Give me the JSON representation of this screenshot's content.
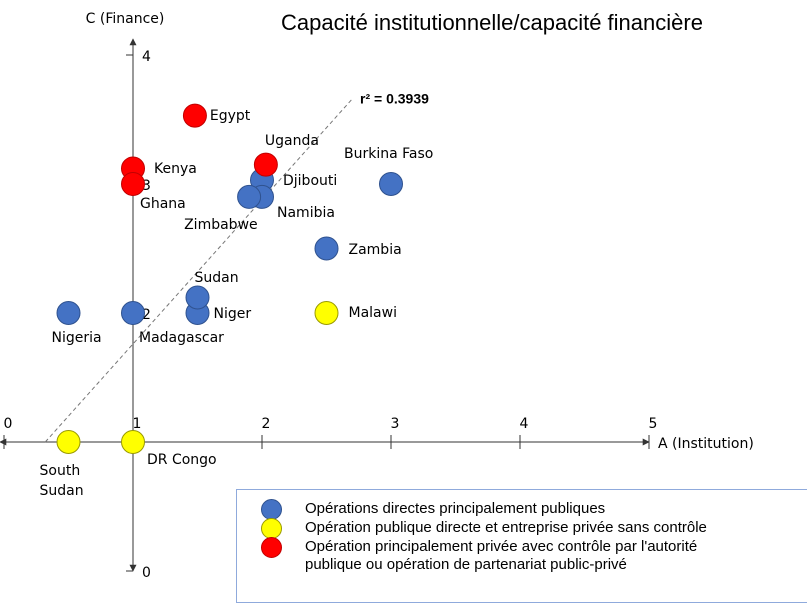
{
  "chart_data": {
    "type": "scatter",
    "title": "Capacité institutionnelle/capacité financière",
    "x_label": "A (Institution)",
    "y_label": "C (Finance)",
    "annotation": "r² = 0.3939",
    "xlim": [
      0,
      5
    ],
    "ylim": [
      0,
      4
    ],
    "xticks": [
      0,
      1,
      2,
      3,
      4,
      5
    ],
    "yticks": [
      0,
      2,
      3,
      4
    ],
    "regression_line": {
      "x": [
        0.32,
        2.7
      ],
      "y": [
        1,
        3.66
      ]
    },
    "series": [
      {
        "name": "Opérations directes principalement publiques",
        "color": "#4472c4",
        "x": [
          0.5,
          1,
          1.5,
          1.5,
          2.5,
          3,
          2,
          2,
          1.9
        ],
        "values": [
          2,
          2,
          2,
          2.12,
          2.5,
          3,
          3.03,
          2.9,
          2.9
        ],
        "labels": [
          "Nigeria",
          "Madagascar",
          "Niger",
          "Sudan",
          "Zambia",
          "Burkina Faso",
          "Djibouti",
          "Namibia",
          "Zimbabwe"
        ]
      },
      {
        "name": "Opération publique directe et entreprise privée sans contrôle",
        "color": "#ffff00",
        "x": [
          2.5,
          0.5,
          1
        ],
        "values": [
          2,
          1,
          1
        ],
        "labels": [
          "Malawi",
          "South Sudan",
          "DR Congo"
        ]
      },
      {
        "name": "Opération principalement privée avec contrôle par l'autorité\npublique ou opération de partenariat public-privé",
        "color": "#ff0000",
        "x": [
          1.48,
          2.03,
          1,
          1
        ],
        "values": [
          3.53,
          3.15,
          3.12,
          3
        ],
        "labels": [
          "Egypt",
          "Uganda",
          "Kenya",
          "Ghana"
        ]
      }
    ]
  }
}
